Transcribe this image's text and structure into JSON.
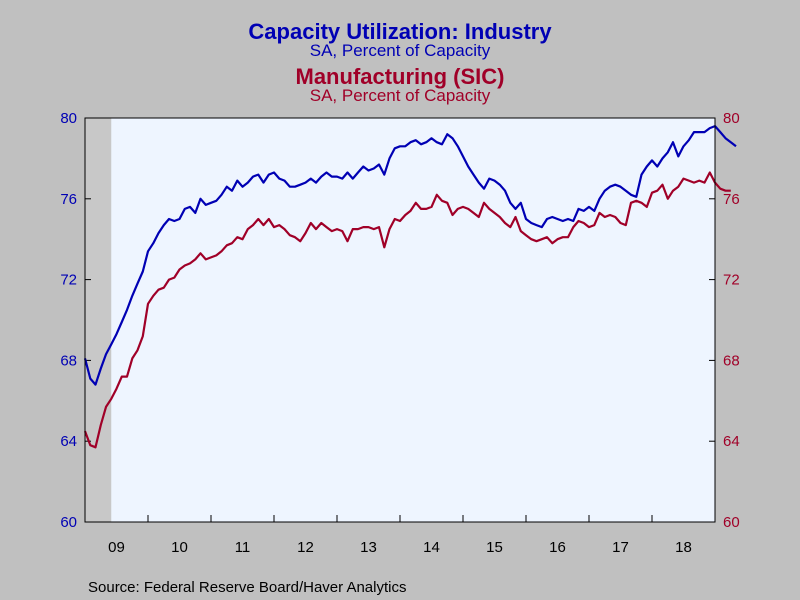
{
  "titles": {
    "main_title": "Capacity Utilization: Industry",
    "main_subtitle": "SA, Percent of Capacity",
    "second_title": "Manufacturing (SIC)",
    "second_subtitle": "SA, Percent of Capacity"
  },
  "source": "Source:  Federal Reserve Board/Haver Analytics",
  "colors": {
    "industry": "#0000b4",
    "manufacturing": "#a00028",
    "plot_bg": "#eef5ff",
    "page_bg": "#c0c0c0",
    "recession": "#c8c8c8"
  },
  "chart_data": {
    "type": "line",
    "x_unit": "month",
    "x_start": "2009-01",
    "x_end": "2019-01",
    "x_tick_labels": [
      "09",
      "10",
      "11",
      "12",
      "13",
      "14",
      "15",
      "16",
      "17",
      "18"
    ],
    "recession_shading": {
      "start": "2009-01",
      "end": "2009-06"
    },
    "left_axis": {
      "ylim": [
        60,
        80
      ],
      "ticks": [
        60,
        64,
        68,
        72,
        76,
        80
      ]
    },
    "right_axis": {
      "ylim": [
        60,
        80
      ],
      "ticks": [
        60,
        64,
        68,
        72,
        76,
        80
      ]
    },
    "grid": false,
    "series": [
      {
        "name": "Capacity Utilization: Industry",
        "axis": "left",
        "values": [
          68.1,
          67.1,
          66.8,
          67.6,
          68.3,
          68.8,
          69.3,
          69.9,
          70.5,
          71.2,
          71.8,
          72.4,
          73.4,
          73.8,
          74.3,
          74.7,
          75.0,
          74.9,
          75.0,
          75.5,
          75.6,
          75.3,
          76.0,
          75.7,
          75.8,
          75.9,
          76.2,
          76.6,
          76.4,
          76.9,
          76.6,
          76.8,
          77.1,
          77.2,
          76.8,
          77.2,
          77.3,
          77.0,
          76.9,
          76.6,
          76.6,
          76.7,
          76.8,
          77.0,
          76.8,
          77.1,
          77.3,
          77.1,
          77.1,
          77.0,
          77.3,
          77.0,
          77.3,
          77.6,
          77.4,
          77.5,
          77.7,
          77.2,
          78.0,
          78.5,
          78.6,
          78.6,
          78.8,
          78.9,
          78.7,
          78.8,
          79.0,
          78.8,
          78.7,
          79.2,
          79.0,
          78.6,
          78.1,
          77.6,
          77.2,
          76.8,
          76.5,
          77.0,
          76.9,
          76.7,
          76.4,
          75.8,
          75.5,
          75.8,
          75.0,
          74.8,
          74.7,
          74.6,
          75.0,
          75.1,
          75.0,
          74.9,
          75.0,
          74.9,
          75.5,
          75.4,
          75.6,
          75.4,
          76.0,
          76.4,
          76.6,
          76.7,
          76.6,
          76.4,
          76.2,
          76.1,
          77.2,
          77.6,
          77.9,
          77.6,
          78.0,
          78.3,
          78.8,
          78.1,
          78.6,
          78.9,
          79.3,
          79.3,
          79.3,
          79.5,
          79.6,
          79.3,
          79.0,
          78.8,
          78.6
        ]
      },
      {
        "name": "Manufacturing (SIC)",
        "axis": "right",
        "values": [
          64.5,
          63.8,
          63.7,
          64.8,
          65.7,
          66.1,
          66.6,
          67.2,
          67.2,
          68.1,
          68.5,
          69.2,
          70.8,
          71.2,
          71.5,
          71.6,
          72.0,
          72.1,
          72.5,
          72.7,
          72.8,
          73.0,
          73.3,
          73.0,
          73.1,
          73.2,
          73.4,
          73.7,
          73.8,
          74.1,
          74.0,
          74.5,
          74.7,
          75.0,
          74.7,
          75.0,
          74.6,
          74.7,
          74.5,
          74.2,
          74.1,
          73.9,
          74.3,
          74.8,
          74.5,
          74.8,
          74.6,
          74.4,
          74.5,
          74.4,
          73.9,
          74.5,
          74.5,
          74.6,
          74.6,
          74.5,
          74.6,
          73.6,
          74.5,
          75.0,
          74.9,
          75.2,
          75.4,
          75.8,
          75.5,
          75.5,
          75.6,
          76.2,
          75.9,
          75.8,
          75.2,
          75.5,
          75.6,
          75.5,
          75.3,
          75.1,
          75.8,
          75.5,
          75.3,
          75.1,
          74.8,
          74.6,
          75.1,
          74.4,
          74.2,
          74.0,
          73.9,
          74.0,
          74.1,
          73.8,
          74.0,
          74.1,
          74.1,
          74.6,
          74.9,
          74.8,
          74.6,
          74.7,
          75.3,
          75.1,
          75.2,
          75.1,
          74.8,
          74.7,
          75.8,
          75.9,
          75.8,
          75.6,
          76.3,
          76.4,
          76.7,
          76.0,
          76.4,
          76.6,
          77.0,
          76.9,
          76.8,
          76.9,
          76.8,
          77.3,
          76.8,
          76.5,
          76.4,
          76.4
        ]
      }
    ]
  }
}
